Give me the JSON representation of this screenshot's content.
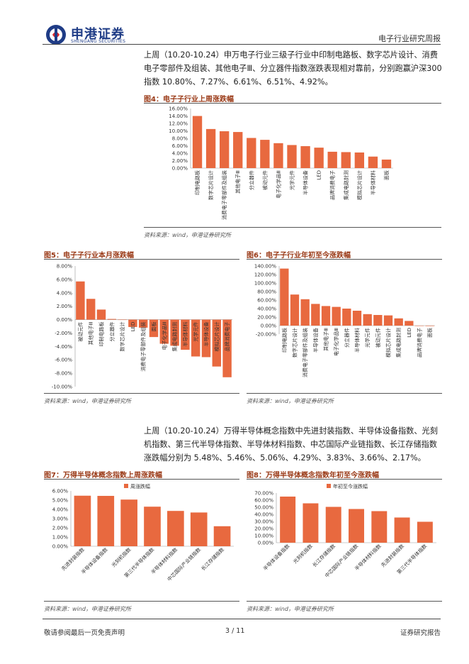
{
  "header": {
    "company_cn": "申港证券",
    "company_en": "SHENGANG SECURITIES",
    "report_type": "电子行业研究周报"
  },
  "paragraphs": {
    "p1": "上周（10.20-10.24）申万电子行业三级子行业中印制电路板、数字芯片设计、消费电子零部件及组装、其他电子Ⅲ、分立器件指数涨跌表现相对靠前，分别跑赢沪深300指数 10.80%、7.27%、6.61%、6.51%、4.92%。",
    "p2": "上周（10.20-10.24）万得半导体概念指数中先进封装指数、半导体设备指数、光刻机指数、第三代半导体指数、半导体材料指数、中芯国际产业链指数、长江存储指数涨跌幅分别为 5.48%、5.46%、5.06%、4.29%、3.83%、3.66%、2.17%。"
  },
  "figures": {
    "fig4": {
      "title": "图4：电子子行业上周涨跌幅",
      "source": "资料来源：wind，申港证券研究所"
    },
    "fig5": {
      "title": "图5：电子子行业本月涨跌幅",
      "source": "资料来源：wind，申港证券研究所"
    },
    "fig6": {
      "title": "图6：电子子行业年初至今涨跌幅",
      "source": "资料来源：wind，申港证券研究所"
    },
    "fig7": {
      "title": "图7：万得半导体概念指数上周涨跌幅",
      "source": "资料来源：wind，申港证券研究所"
    },
    "fig8": {
      "title": "图8：万得半导体概念指数年初至今涨跌幅",
      "source": "资料来源：wind，申港证券研究所"
    }
  },
  "chart_data": [
    {
      "id": "fig4",
      "type": "bar",
      "bar_color": "#e8693f",
      "categories": [
        "印制电路板",
        "数字芯片设计",
        "消费电子零部件及组装",
        "其他电子Ⅲ",
        "分立器件",
        "被动元件",
        "电子化学品Ⅲ",
        "光学元件",
        "半导体设备",
        "LED",
        "品牌消费电子",
        "集成电路封测",
        "模拟芯片设计",
        "半导体材料",
        "面板"
      ],
      "values": [
        14.0,
        10.5,
        9.9,
        9.7,
        8.1,
        7.6,
        6.7,
        6.2,
        5.9,
        5.5,
        4.4,
        4.3,
        4.2,
        3.1,
        2.3
      ],
      "yticks": [
        "16.00%",
        "14.00%",
        "12.00%",
        "10.00%",
        "8.00%",
        "6.00%",
        "4.00%",
        "2.00%",
        "0.00%"
      ],
      "ylim": [
        0,
        16
      ]
    },
    {
      "id": "fig5",
      "type": "bar",
      "bar_color": "#e8693f",
      "categories": [
        "被动元件",
        "其他电子Ⅲ",
        "印制电路板",
        "分立器件",
        "数字芯片设计",
        "LED",
        "消费电子零部件及组装",
        "面板",
        "电子化学品Ⅲ",
        "集成电路封测",
        "半导体材料",
        "光学元件",
        "半导体设备",
        "模拟芯片设计",
        "品牌消费电子"
      ],
      "values": [
        5.7,
        3.1,
        1.5,
        0.1,
        0.0,
        -1.1,
        -1.2,
        -2.6,
        -3.6,
        -3.9,
        -4.5,
        -5.5,
        -5.6,
        -7.0,
        -8.6
      ],
      "yticks": [
        "8.00%",
        "6.00%",
        "4.00%",
        "2.00%",
        "0.00%",
        "-2.00%",
        "-4.00%",
        "-6.00%",
        "-8.00%",
        "-10.00%"
      ],
      "ylim": [
        -10,
        8
      ]
    },
    {
      "id": "fig6",
      "type": "bar",
      "bar_color": "#e8693f",
      "categories": [
        "印制电路板",
        "数字芯片设计",
        "消费电子零部件及组装",
        "半导体设备",
        "其他电子Ⅲ",
        "电子化学品Ⅲ",
        "分立器件",
        "半导体材料",
        "光学元件",
        "被动元件",
        "模拟芯片设计",
        "集成电路封测",
        "LED",
        "品牌消费电子",
        "面板"
      ],
      "values": [
        134,
        73,
        62,
        51,
        46,
        44,
        40,
        35,
        27,
        25,
        24,
        17,
        11,
        0,
        -1
      ],
      "yticks": [
        "140.00%",
        "120.00%",
        "100.00%",
        "80.00%",
        "60.00%",
        "40.00%",
        "20.00%",
        "0.00%",
        "-20.00%"
      ],
      "ylim": [
        -20,
        140
      ]
    },
    {
      "id": "fig7",
      "type": "bar",
      "bar_color": "#e8693f",
      "legend": "周涨跌幅",
      "categories": [
        "先进封装指数",
        "半导体设备指数",
        "光刻机指数",
        "第三代半导体指数",
        "半导体材料指数",
        "中芯国际产业链指数",
        "长江存储指数"
      ],
      "values": [
        5.48,
        5.46,
        5.06,
        4.29,
        3.83,
        3.66,
        2.17
      ],
      "yticks": [
        "6.00%",
        "5.00%",
        "4.00%",
        "3.00%",
        "2.00%",
        "1.00%",
        "0.00%"
      ],
      "ylim": [
        0,
        6
      ]
    },
    {
      "id": "fig8",
      "type": "bar",
      "bar_color": "#e8693f",
      "legend": "年初至今涨跌幅",
      "categories": [
        "半导体设备指数",
        "光刻机指数",
        "长江存储指数",
        "中芯国际产业链指数",
        "半导体材料指数",
        "先进封装指数",
        "第三代半导体指数"
      ],
      "values": [
        65,
        55.5,
        50.5,
        47.5,
        44.5,
        35.5,
        29.5
      ],
      "yticks": [
        "70.00%",
        "60.00%",
        "50.00%",
        "40.00%",
        "30.00%",
        "20.00%",
        "10.00%",
        "0.00%"
      ],
      "ylim": [
        0,
        70
      ]
    }
  ],
  "footer": {
    "disclaimer": "敬请参阅最后一页免责声明",
    "page": "3 / 11",
    "report_label": "证券研究报告"
  }
}
